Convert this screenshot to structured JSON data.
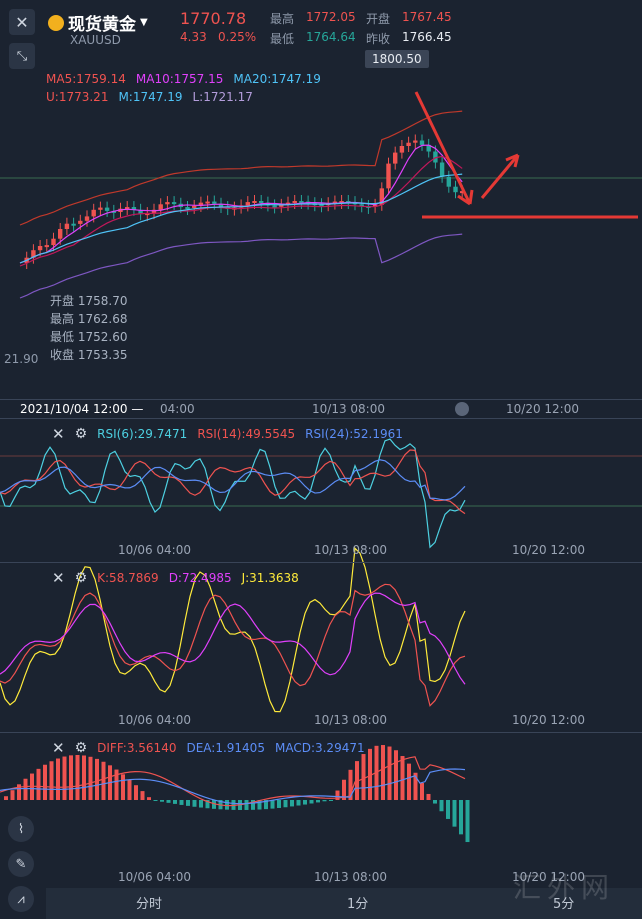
{
  "header": {
    "instrument_name": "现货黄金",
    "symbol": "XAUUSD",
    "price": "1770.78",
    "change": "4.33",
    "change_pct": "0.25%",
    "high_label": "最高",
    "high_value": "1772.05",
    "low_label": "最低",
    "low_value": "1764.64",
    "open_label": "开盘",
    "open_value": "1767.45",
    "prev_label": "昨收",
    "prev_value": "1766.45"
  },
  "main_chart": {
    "price_tag": "1800.50",
    "ma5": "MA5:1759.14",
    "ma10": "MA10:1757.15",
    "ma20": "MA20:1747.19",
    "boll_u": "U:1773.21",
    "boll_m": "M:1747.19",
    "boll_l": "L:1721.17",
    "left_price": "21.90",
    "ohlc": [
      {
        "label": "开盘",
        "value": "1758.70"
      },
      {
        "label": "最高",
        "value": "1762.68"
      },
      {
        "label": "最低",
        "value": "1752.60"
      },
      {
        "label": "收盘",
        "value": "1753.35"
      }
    ],
    "crosshair_time": "2021/10/04 12:00",
    "time_labels": [
      "04:00",
      "10/13 08:00",
      "10/20 12:00"
    ]
  },
  "rsi_panel": {
    "rsi6": "RSI(6):29.7471",
    "rsi14": "RSI(14):49.5545",
    "rsi24": "RSI(24):52.1961",
    "time_labels": [
      "10/06 04:00",
      "10/13 08:00",
      "10/20 12:00"
    ]
  },
  "kdj_panel": {
    "k": "K:58.7869",
    "d": "D:72.4985",
    "j": "J:31.3638",
    "time_labels": [
      "10/06 04:00",
      "10/13 08:00",
      "10/20 12:00"
    ]
  },
  "macd_panel": {
    "diff": "DIFF:3.56140",
    "dea": "DEA:1.91405",
    "macd": "MACD:3.29471",
    "time_labels": [
      "10/06 04:00",
      "10/13 08:00",
      "10/20 12:00"
    ]
  },
  "bottom_tabs": [
    "分时",
    "1分",
    "5分"
  ],
  "watermark": "汇外网",
  "colors": {
    "up": "#ef5350",
    "down": "#26a69a",
    "ma5": "#e040fb",
    "ma10": "#e040fb",
    "ma20": "#4fc3f7",
    "boll_u": "#ef5350",
    "boll_m": "#4fc3f7",
    "boll_l": "#7e57c2",
    "rsi6": "#4dd0e1",
    "rsi14": "#ef5350",
    "rsi24": "#5c8df6",
    "k": "#ef5350",
    "d": "#e040fb",
    "j": "#ffeb3b",
    "diff": "#ef5350",
    "dea": "#5c8df6"
  }
}
